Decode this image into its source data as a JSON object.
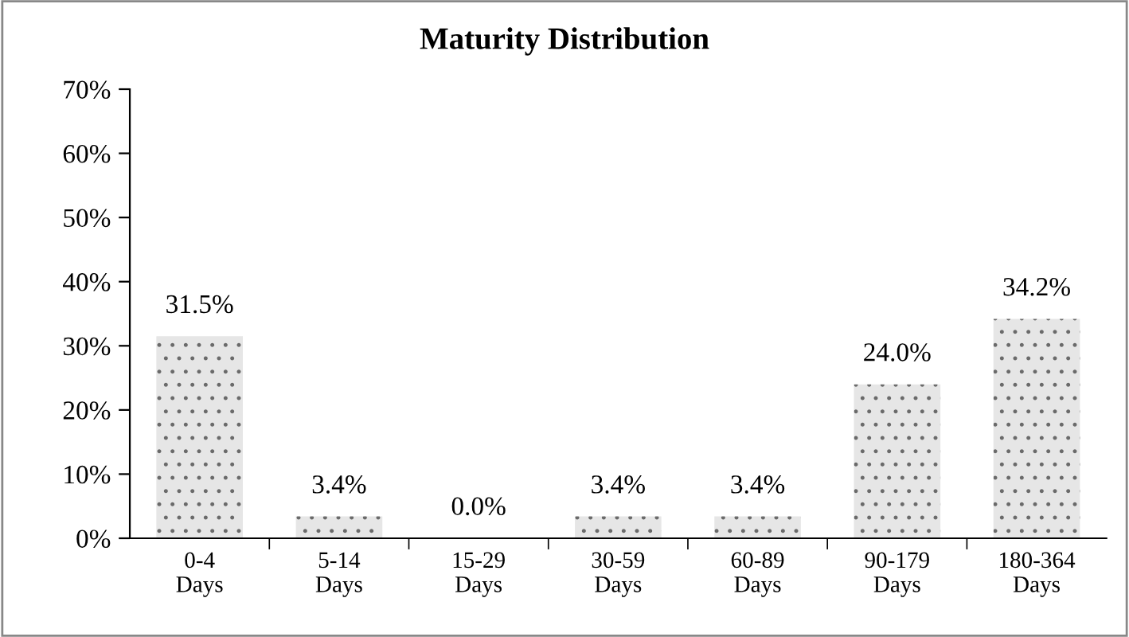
{
  "chart_data": {
    "type": "bar",
    "title": "Maturity Distribution",
    "categories": [
      "0-4\nDays",
      "5-14\nDays",
      "15-29\nDays",
      "30-59\nDays",
      "60-89\nDays",
      "90-179\nDays",
      "180-364\nDays"
    ],
    "values": [
      31.5,
      3.4,
      0.0,
      3.4,
      3.4,
      24.0,
      34.2
    ],
    "value_labels": [
      "31.5%",
      "3.4%",
      "0.0%",
      "3.4%",
      "3.4%",
      "24.0%",
      "34.2%"
    ],
    "color": "#e6e6e6",
    "ylim": [
      0,
      70
    ],
    "yticks": [
      {
        "value": 0,
        "label": "0%"
      },
      {
        "value": 10,
        "label": "10%"
      },
      {
        "value": 20,
        "label": "20%"
      },
      {
        "value": 30,
        "label": "30%"
      },
      {
        "value": 40,
        "label": "40%"
      },
      {
        "value": 50,
        "label": "50%"
      },
      {
        "value": 60,
        "label": "60%"
      },
      {
        "value": 70,
        "label": "70%"
      }
    ],
    "grid": false,
    "legend": false
  }
}
